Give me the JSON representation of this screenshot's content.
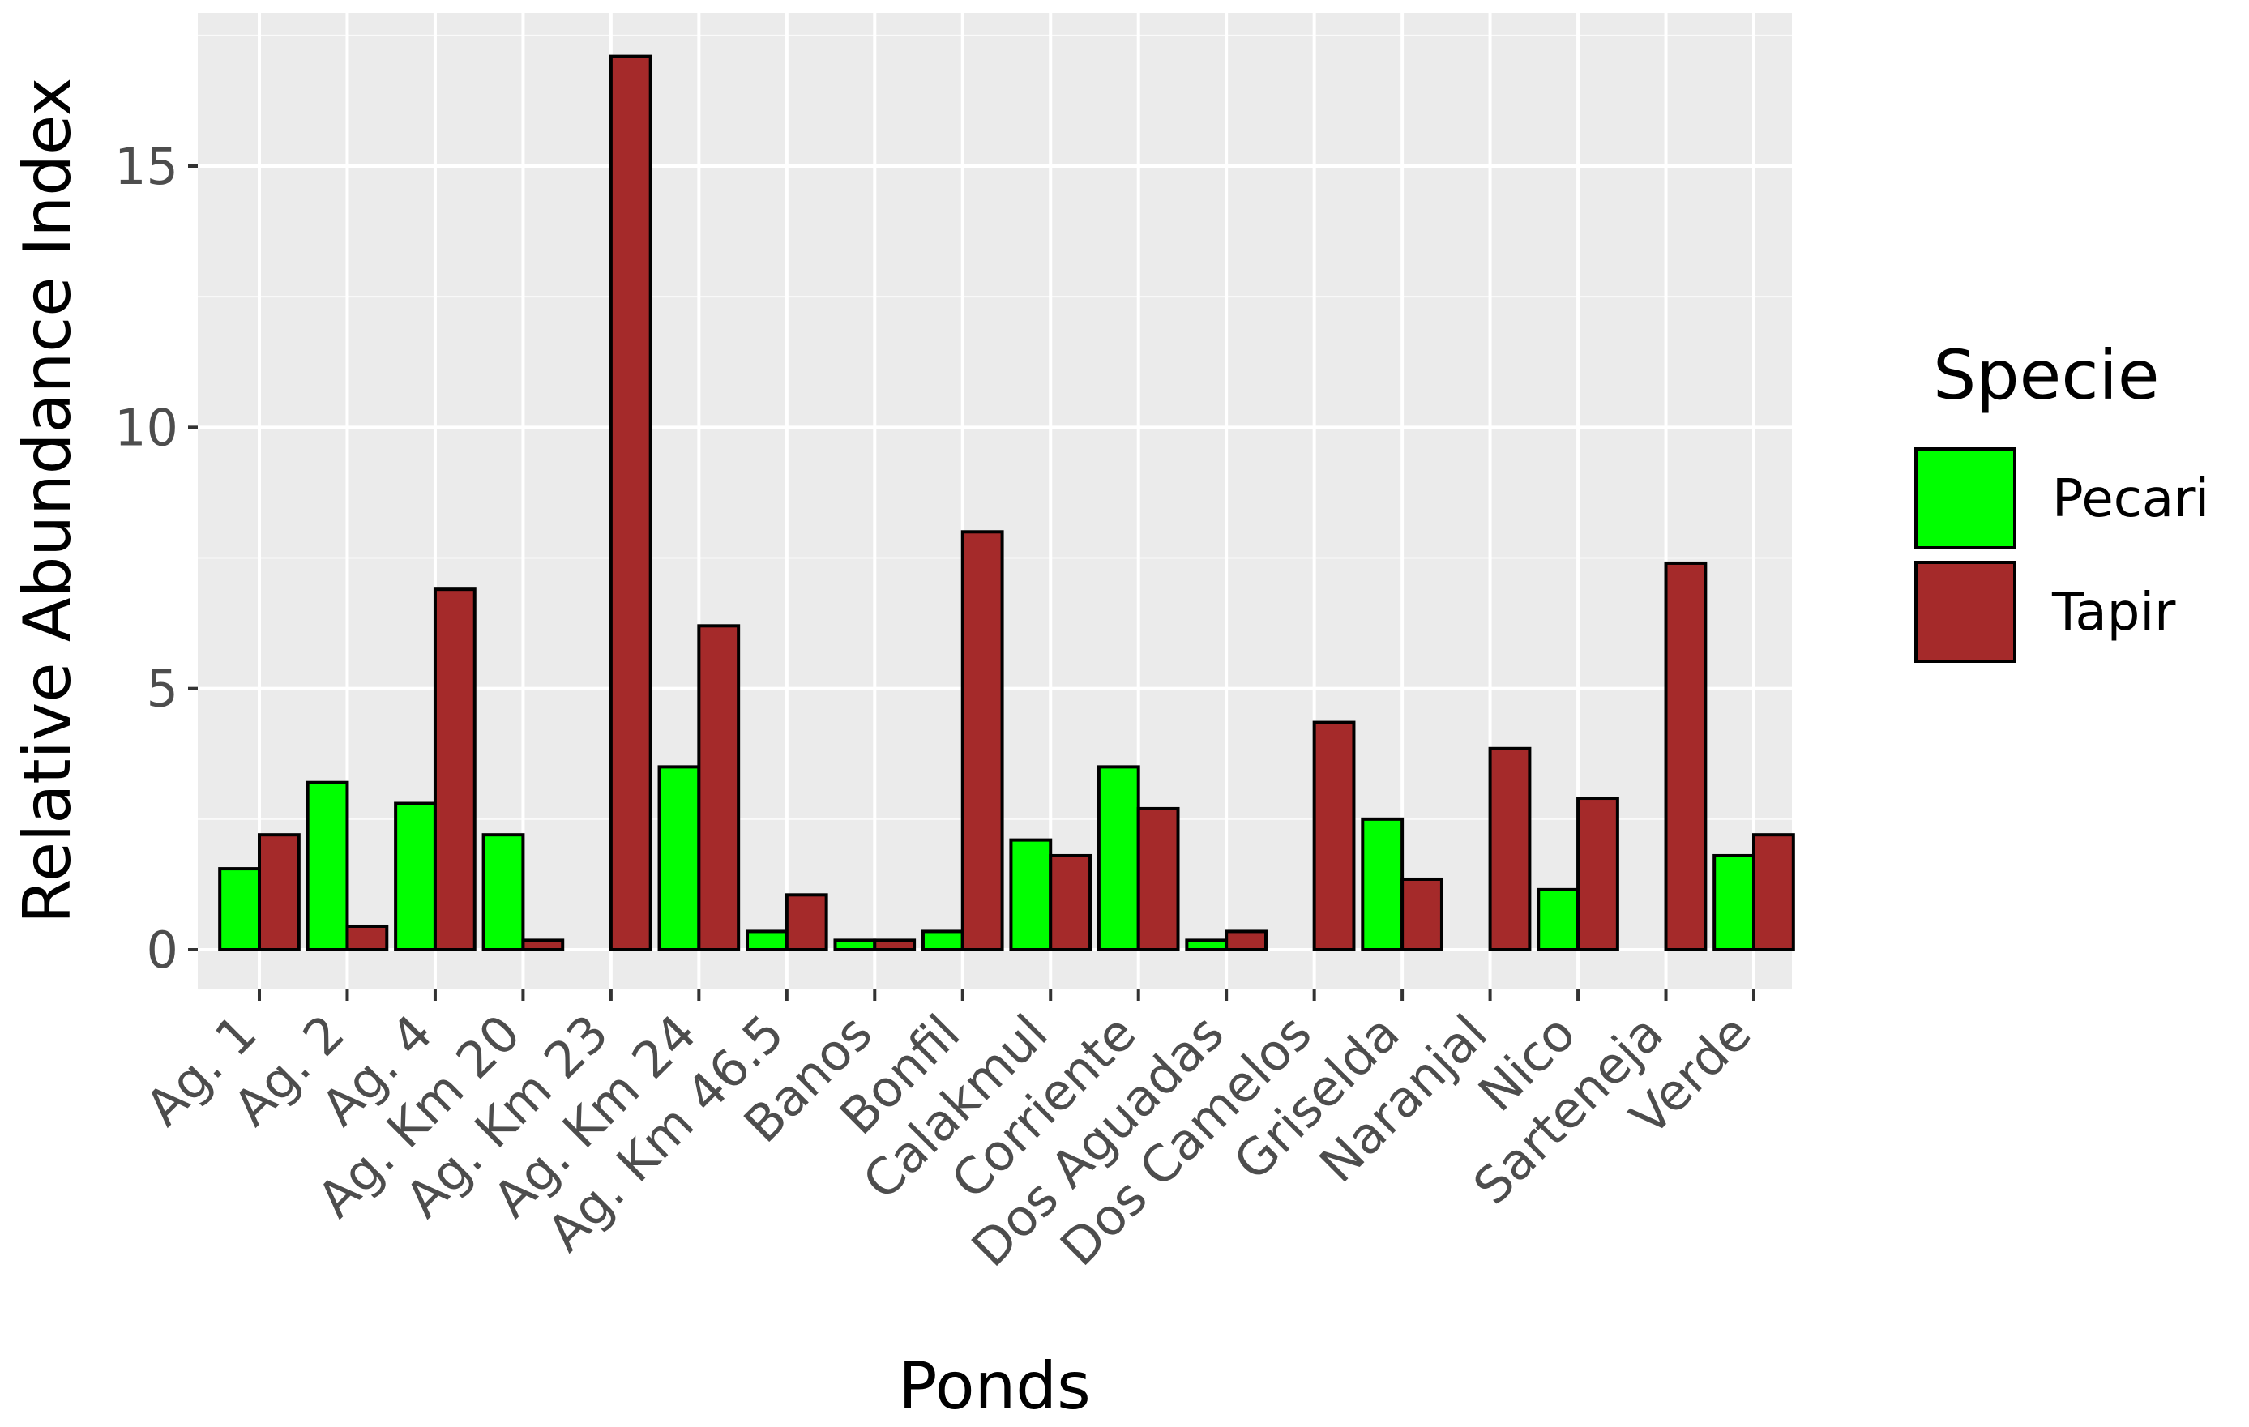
{
  "chart_data": {
    "type": "bar",
    "xlabel": "Ponds",
    "ylabel": "Relative Abundance Index",
    "ylim": [
      0,
      17.6
    ],
    "yticks": [
      0,
      5,
      10,
      15
    ],
    "grid": true,
    "legend": {
      "title": "Specie",
      "position": "right"
    },
    "categories": [
      "Ag. 1",
      "Ag. 2",
      "Ag. 4",
      "Ag. Km 20",
      "Ag. Km 23",
      "Ag. Km 24",
      "Ag. Km 46.5",
      "Banos",
      "Bonfil",
      "Calakmul",
      "Corriente",
      "Dos Aguadas",
      "Dos Camelos",
      "Griselda",
      "Naranjal",
      "Nico",
      "Sarteneja",
      "Verde"
    ],
    "series": [
      {
        "name": "Pecari",
        "color": "#00ff00",
        "values": [
          1.55,
          3.2,
          2.8,
          2.2,
          0,
          3.5,
          0.35,
          0.18,
          0.35,
          2.1,
          3.5,
          0.18,
          0,
          2.5,
          0,
          1.15,
          0,
          1.8
        ]
      },
      {
        "name": "Tapir",
        "color": "#a52a2a",
        "values": [
          2.2,
          0.45,
          6.9,
          0.18,
          17.1,
          6.2,
          1.05,
          0.18,
          8.0,
          1.8,
          2.7,
          0.35,
          4.35,
          1.35,
          3.85,
          2.9,
          7.4,
          2.2
        ]
      }
    ]
  }
}
